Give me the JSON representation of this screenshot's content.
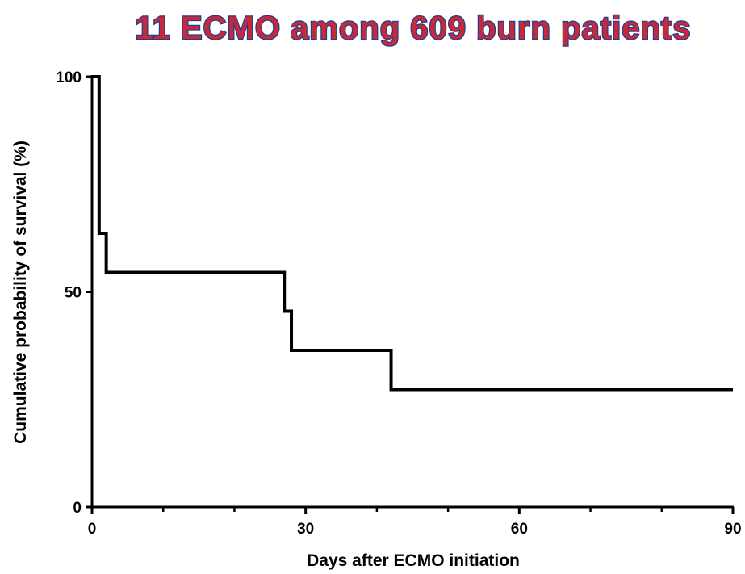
{
  "chart_data": {
    "type": "line",
    "step": true,
    "title": "11 ECMO among 609 burn patients",
    "xlabel": "Days after ECMO initiation",
    "ylabel": "Cumulative probability of survival (%)",
    "xlim": [
      0,
      90
    ],
    "ylim": [
      0,
      100
    ],
    "x_ticks": [
      0,
      30,
      60,
      90
    ],
    "x_minor_ticks": [
      10,
      20,
      40,
      50,
      70,
      80
    ],
    "y_ticks": [
      0,
      50,
      100
    ],
    "grid": false,
    "series": [
      {
        "x": [
          0,
          1,
          2,
          27,
          28,
          42,
          90
        ],
        "y": [
          100,
          63.6,
          54.5,
          45.5,
          36.4,
          27.3,
          27.3
        ]
      }
    ],
    "colors": {
      "line": "#000000",
      "title_fill": "#c42a3a",
      "title_outline": "#1f3d8f"
    }
  }
}
